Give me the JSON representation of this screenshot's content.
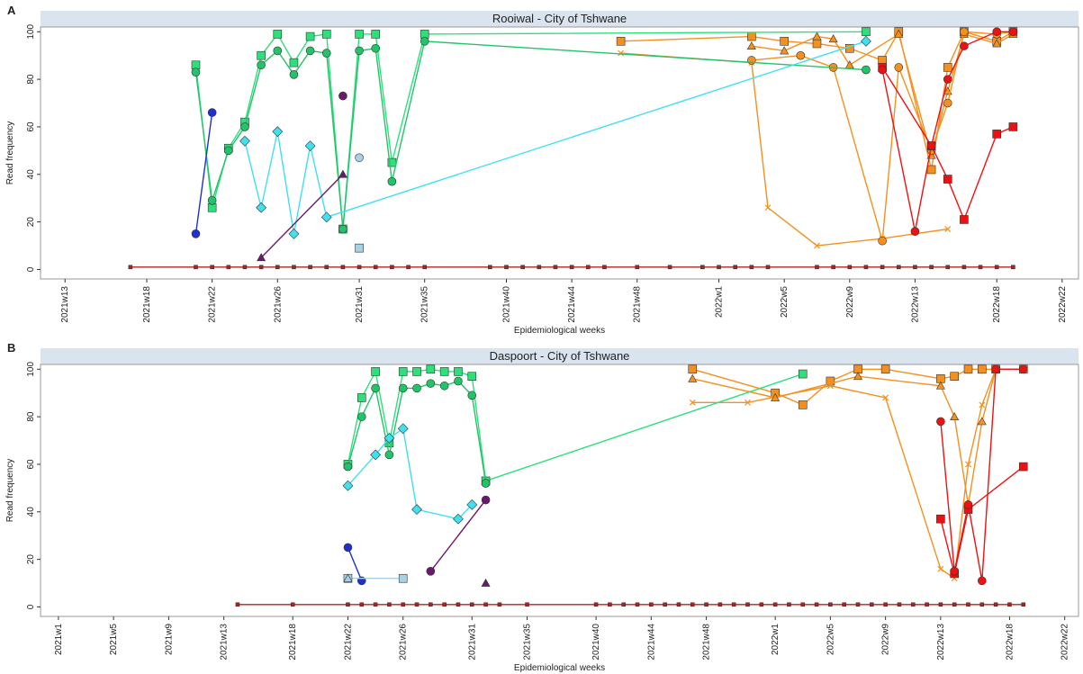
{
  "chart_data": [
    {
      "type": "line",
      "panel": "A",
      "title": "Rooiwal - City of Tshwane",
      "xlabel": "Epidemiological weeks",
      "ylabel": "Read frequency",
      "xlim": [
        11.5,
        75
      ],
      "ylim": [
        -4,
        102
      ],
      "yticks": [
        0,
        20,
        40,
        60,
        80,
        100
      ],
      "xticks": [
        {
          "value": 13,
          "label": "2021w13"
        },
        {
          "value": 18,
          "label": "2021w18"
        },
        {
          "value": 22,
          "label": "2021w22"
        },
        {
          "value": 26,
          "label": "2021w26"
        },
        {
          "value": 31,
          "label": "2021w31"
        },
        {
          "value": 35,
          "label": "2021w35"
        },
        {
          "value": 40,
          "label": "2021w40"
        },
        {
          "value": 44,
          "label": "2021w44"
        },
        {
          "value": 48,
          "label": "2021w48"
        },
        {
          "value": 53,
          "label": "2022w1"
        },
        {
          "value": 57,
          "label": "2022w5"
        },
        {
          "value": 61,
          "label": "2022w9"
        },
        {
          "value": 65,
          "label": "2022w13"
        },
        {
          "value": 70,
          "label": "2022w18"
        },
        {
          "value": 74,
          "label": "2022w22"
        }
      ],
      "series": [
        {
          "color": "#b22222",
          "marker": "square",
          "x": [
            17,
            21,
            22,
            23,
            24,
            25,
            26,
            27,
            28,
            29,
            30,
            31,
            32,
            33,
            34,
            35,
            39,
            40,
            41,
            42,
            43,
            44,
            45,
            46,
            48,
            50,
            52,
            53,
            54,
            55,
            56,
            59,
            60,
            61,
            62,
            63,
            64,
            65,
            66,
            67,
            68,
            69,
            70,
            71
          ],
          "values": [
            1,
            1,
            1,
            1,
            1,
            1,
            1,
            1,
            1,
            1,
            1,
            1,
            1,
            1,
            1,
            1,
            1,
            1,
            1,
            1,
            1,
            1,
            1,
            1,
            1,
            1,
            1,
            1,
            1,
            1,
            1,
            1,
            1,
            1,
            1,
            1,
            1,
            1,
            1,
            1,
            1,
            1,
            1,
            1
          ]
        },
        {
          "color": "#f5901e",
          "marker": "square",
          "x": [
            47,
            55,
            57,
            59,
            61,
            63,
            64,
            66,
            67,
            68,
            70,
            71
          ],
          "values": [
            96,
            98,
            96,
            95,
            93,
            88,
            100,
            42,
            85,
            100,
            96,
            100
          ]
        },
        {
          "color": "#f5901e",
          "marker": "x",
          "x": [
            47,
            55,
            56,
            59,
            63,
            67
          ],
          "values": [
            91,
            87,
            26,
            10,
            13,
            17
          ]
        },
        {
          "color": "#f5901e",
          "marker": "triangle",
          "x": [
            55,
            57,
            59,
            60,
            61,
            64,
            66,
            67,
            68,
            70,
            71
          ],
          "values": [
            94,
            92,
            98,
            97,
            86,
            99,
            48,
            75,
            99,
            95,
            99
          ]
        },
        {
          "color": "#f5901e",
          "marker": "circle",
          "x": [
            55,
            58,
            60,
            63,
            64,
            66,
            67,
            68,
            70,
            71
          ],
          "values": [
            88,
            90,
            85,
            12,
            85,
            50,
            70,
            100,
            99,
            100
          ]
        },
        {
          "color": "#2ee07a",
          "marker": "square",
          "x": [
            21,
            22,
            23,
            24,
            25,
            26,
            27,
            28,
            29,
            30,
            31,
            32,
            33,
            35,
            62
          ],
          "values": [
            86,
            26,
            51,
            62,
            90,
            99,
            87,
            98,
            99,
            17,
            99,
            99,
            45,
            99,
            100
          ]
        },
        {
          "color": "#22c46a",
          "marker": "circle",
          "x": [
            21,
            22,
            23,
            24,
            25,
            26,
            27,
            28,
            29,
            30,
            31,
            32,
            33,
            35,
            62
          ],
          "values": [
            83,
            29,
            50,
            60,
            86,
            92,
            82,
            92,
            91,
            17,
            92,
            93,
            37,
            96,
            84
          ]
        },
        {
          "color": "#3fe0f0",
          "marker": "diamond",
          "x": [
            24,
            25,
            26,
            27,
            28,
            29,
            62
          ],
          "values": [
            54,
            26,
            58,
            15,
            52,
            22,
            96
          ]
        },
        {
          "color": "#1f2fd0",
          "marker": "circle",
          "x": [
            21,
            22
          ],
          "values": [
            15,
            66
          ]
        },
        {
          "color": "#6a1a6a",
          "marker": "triangle",
          "x": [
            25,
            30
          ],
          "values": [
            5,
            40
          ]
        },
        {
          "color": "#6a1a6a",
          "marker": "circle",
          "x": [
            30
          ],
          "values": [
            73
          ]
        },
        {
          "color": "#a8d0e6",
          "marker": "circle",
          "x": [
            31
          ],
          "values": [
            47
          ]
        },
        {
          "color": "#a8d0e6",
          "marker": "square",
          "x": [
            31
          ],
          "values": [
            9
          ]
        },
        {
          "color": "#ee1111",
          "marker": "square",
          "x": [
            63,
            66,
            67,
            68,
            70,
            71
          ],
          "values": [
            85,
            52,
            38,
            21,
            57,
            60
          ]
        },
        {
          "color": "#ee1111",
          "marker": "circle",
          "x": [
            63,
            65,
            66,
            67,
            68,
            70,
            71
          ],
          "values": [
            84,
            16,
            52,
            80,
            94,
            100,
            100
          ]
        }
      ]
    },
    {
      "type": "line",
      "panel": "B",
      "title": "Daspoort - City of Tshwane",
      "xlabel": "Epidemiological weeks",
      "ylabel": "Read frequency",
      "xlim": [
        -0.3,
        75
      ],
      "ylim": [
        -4,
        102
      ],
      "yticks": [
        0,
        20,
        40,
        60,
        80,
        100
      ],
      "xticks": [
        {
          "value": 1,
          "label": "2021w1"
        },
        {
          "value": 5,
          "label": "2021w5"
        },
        {
          "value": 9,
          "label": "2021w9"
        },
        {
          "value": 13,
          "label": "2021w13"
        },
        {
          "value": 18,
          "label": "2021w18"
        },
        {
          "value": 22,
          "label": "2021w22"
        },
        {
          "value": 26,
          "label": "2021w26"
        },
        {
          "value": 31,
          "label": "2021w31"
        },
        {
          "value": 35,
          "label": "2021w35"
        },
        {
          "value": 40,
          "label": "2021w40"
        },
        {
          "value": 44,
          "label": "2021w44"
        },
        {
          "value": 48,
          "label": "2021w48"
        },
        {
          "value": 53,
          "label": "2022w1"
        },
        {
          "value": 57,
          "label": "2022w5"
        },
        {
          "value": 61,
          "label": "2022w9"
        },
        {
          "value": 65,
          "label": "2022w13"
        },
        {
          "value": 70,
          "label": "2022w18"
        },
        {
          "value": 74,
          "label": "2022w22"
        }
      ],
      "series": [
        {
          "color": "#b22222",
          "marker": "square",
          "x": [
            14,
            18,
            22,
            23,
            24,
            25,
            26,
            27,
            28,
            29,
            30,
            31,
            32,
            33,
            35,
            40,
            41,
            42,
            43,
            44,
            45,
            46,
            47,
            48,
            49,
            50,
            51,
            52,
            53,
            54,
            55,
            56,
            57,
            58,
            59,
            60,
            61,
            62,
            63,
            64,
            65,
            66,
            67,
            68,
            69,
            70,
            71
          ],
          "values": [
            1,
            1,
            1,
            1,
            1,
            1,
            1,
            1,
            1,
            1,
            1,
            1,
            1,
            1,
            1,
            1,
            1,
            1,
            1,
            1,
            1,
            1,
            1,
            1,
            1,
            1,
            1,
            1,
            1,
            1,
            1,
            1,
            1,
            1,
            1,
            1,
            1,
            1,
            1,
            1,
            1,
            1,
            1,
            1,
            1,
            1,
            1
          ]
        },
        {
          "color": "#f5901e",
          "marker": "square",
          "x": [
            47,
            53,
            55,
            57,
            59,
            61,
            65,
            66,
            67,
            68,
            69,
            71
          ],
          "values": [
            100,
            90,
            85,
            95,
            100,
            100,
            96,
            97,
            100,
            100,
            100,
            100
          ]
        },
        {
          "color": "#f5901e",
          "marker": "x",
          "x": [
            47,
            51,
            57,
            61,
            65,
            66,
            67,
            68,
            69,
            71
          ],
          "values": [
            86,
            86,
            93,
            88,
            16,
            12,
            60,
            85,
            100,
            100
          ]
        },
        {
          "color": "#f5901e",
          "marker": "triangle",
          "x": [
            47,
            53,
            59,
            65,
            66,
            67,
            68,
            69
          ],
          "values": [
            96,
            88,
            97,
            93,
            80,
            43,
            78,
            100
          ]
        },
        {
          "color": "#2ee07a",
          "marker": "square",
          "x": [
            22,
            23,
            24,
            25,
            26,
            27,
            28,
            29,
            30,
            31,
            32,
            55
          ],
          "values": [
            60,
            88,
            99,
            69,
            99,
            99,
            100,
            99,
            99,
            97,
            53,
            98
          ]
        },
        {
          "color": "#22c46a",
          "marker": "circle",
          "x": [
            22,
            23,
            24,
            25,
            26,
            27,
            28,
            29,
            30,
            31,
            32
          ],
          "values": [
            59,
            80,
            92,
            64,
            92,
            92,
            94,
            93,
            95,
            89,
            52
          ]
        },
        {
          "color": "#3fe0f0",
          "marker": "diamond",
          "x": [
            22,
            24,
            25,
            26,
            27,
            30,
            31
          ],
          "values": [
            51,
            64,
            71,
            75,
            41,
            37,
            43
          ]
        },
        {
          "color": "#1f2fd0",
          "marker": "circle",
          "x": [
            22,
            23
          ],
          "values": [
            25,
            11
          ]
        },
        {
          "color": "#a8d0e6",
          "marker": "square",
          "x": [
            22,
            26
          ],
          "values": [
            12,
            12
          ]
        },
        {
          "color": "#a8d0e6",
          "marker": "triangle",
          "x": [
            22
          ],
          "values": [
            12
          ]
        },
        {
          "color": "#6a1a6a",
          "marker": "circle",
          "x": [
            28,
            32
          ],
          "values": [
            15,
            45
          ]
        },
        {
          "color": "#6a1a6a",
          "marker": "triangle",
          "x": [
            32
          ],
          "values": [
            10
          ]
        },
        {
          "color": "#ee1111",
          "marker": "square",
          "x": [
            65,
            66,
            67,
            71
          ],
          "values": [
            37,
            14,
            41,
            59
          ]
        },
        {
          "color": "#ee1111",
          "marker": "circle",
          "x": [
            65,
            66,
            67,
            68,
            69,
            71
          ],
          "values": [
            78,
            15,
            43,
            11,
            100,
            100
          ]
        }
      ]
    }
  ]
}
